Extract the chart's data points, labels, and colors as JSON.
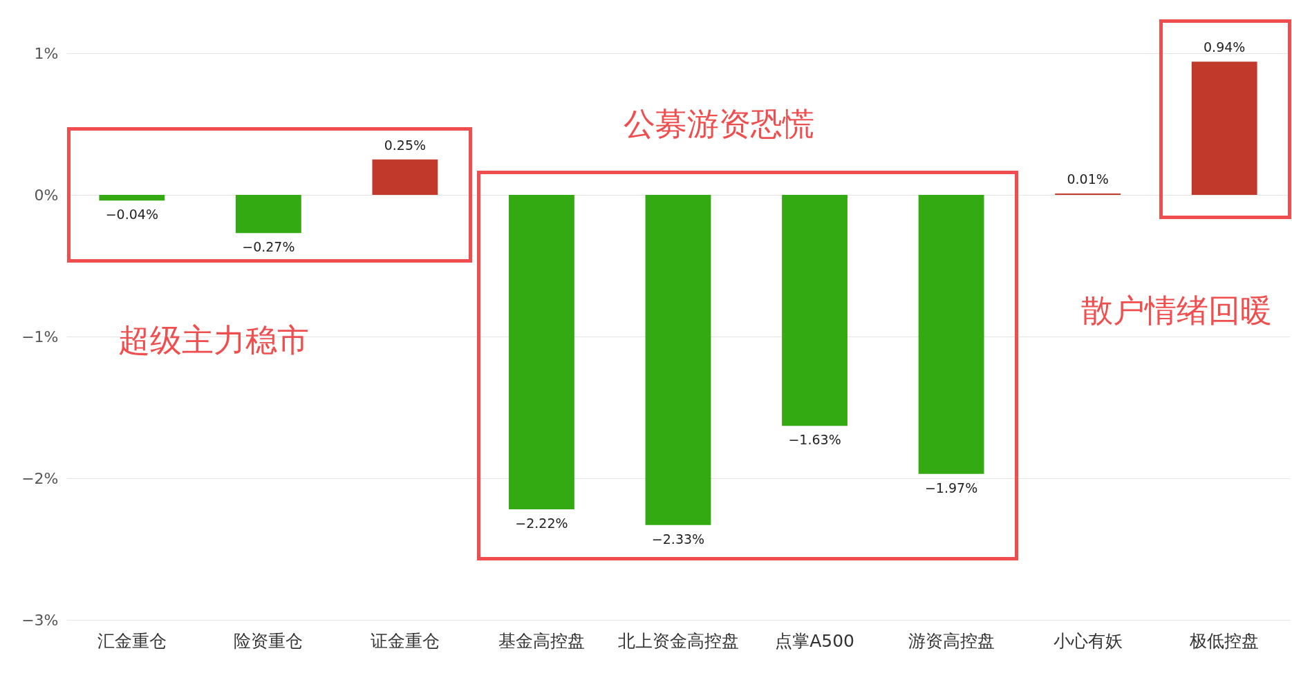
{
  "chart_data": {
    "type": "bar",
    "categories": [
      "汇金重仓",
      "险资重仓",
      "证金重仓",
      "基金高控盘",
      "北上资金高控盘",
      "点掌A500",
      "游资高控盘",
      "小心有妖",
      "极低控盘"
    ],
    "values": [
      -0.04,
      -0.27,
      0.25,
      -2.22,
      -2.33,
      -1.63,
      -1.97,
      0.01,
      0.94
    ],
    "colors": [
      "#33aa11",
      "#33aa11",
      "#c0392b",
      "#33aa11",
      "#33aa11",
      "#33aa11",
      "#33aa11",
      "#c0392b",
      "#c0392b"
    ],
    "value_labels": [
      "−0.04%",
      "−0.27%",
      "0.25%",
      "−2.22%",
      "−2.33%",
      "−1.63%",
      "−1.97%",
      "0.01%",
      "0.94%"
    ],
    "ylim": [
      -3,
      1
    ],
    "yticks": [
      {
        "value": 1,
        "label": "1%"
      },
      {
        "value": 0,
        "label": "0%"
      },
      {
        "value": -1,
        "label": "−1%"
      },
      {
        "value": -2,
        "label": "−2%"
      },
      {
        "value": -3,
        "label": "−3%"
      }
    ],
    "grid": "y",
    "annotations": [
      "公募游资恐慌",
      "超级主力稳市",
      "散户情绪回暖"
    ]
  }
}
